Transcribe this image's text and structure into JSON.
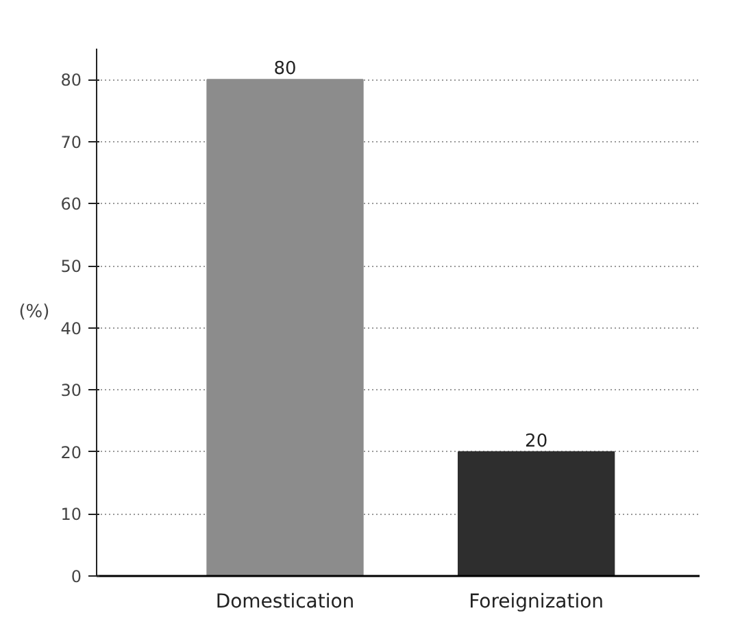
{
  "chart_data": {
    "type": "bar",
    "ylabel": "(%)",
    "categories": [
      "Domestication",
      "Foreignization"
    ],
    "values": [
      80,
      20
    ],
    "colors": [
      "#8c8c8c",
      "#2e2e2e"
    ],
    "ylim": [
      0,
      85
    ],
    "yticks": [
      0,
      10,
      20,
      30,
      40,
      50,
      60,
      70,
      80
    ],
    "grid": "y",
    "data_labels": true
  }
}
